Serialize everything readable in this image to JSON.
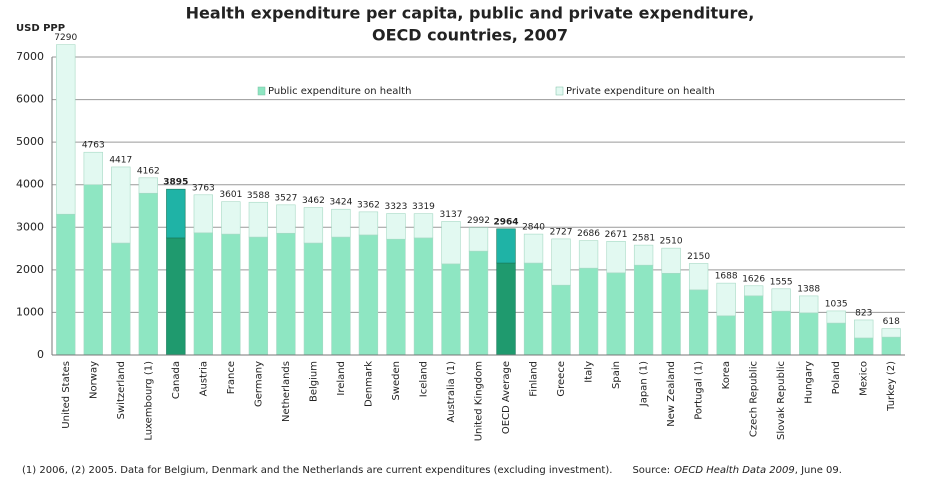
{
  "chart_data": {
    "type": "stacked_bar",
    "title": [
      "Health expenditure per capita, public and private expenditure,",
      "OECD countries, 2007"
    ],
    "y_label": "USD PPP",
    "categories": [
      "United States",
      "Norway",
      "Switzerland",
      "Luxembourg (1)",
      "Canada",
      "Austria",
      "France",
      "Germany",
      "Netherlands",
      "Belgium",
      "Ireland",
      "Denmark",
      "Sweden",
      "Iceland",
      "Australia (1)",
      "United Kingdom",
      "OECD Average",
      "Finland",
      "Greece",
      "Italy",
      "Spain",
      "Japan (1)",
      "New Zealand",
      "Portugal (1)",
      "Korea",
      "Czech Republic",
      "Slovak Republic",
      "Hungary",
      "Poland",
      "Mexico",
      "Turkey (2)"
    ],
    "series": [
      {
        "name": "Public expenditure on health",
        "color": "#8ee6c2",
        "highlight_color": "#1f9a6e",
        "values": [
          3307,
          4000,
          2630,
          3800,
          2750,
          2870,
          2840,
          2770,
          2860,
          2630,
          2770,
          2820,
          2720,
          2750,
          2140,
          2440,
          2160,
          2160,
          1640,
          2040,
          1930,
          2110,
          1920,
          1530,
          920,
          1390,
          1030,
          990,
          750,
          400,
          420
        ]
      },
      {
        "name": "Private expenditure on health",
        "color": "#e2f9f1",
        "highlight_color": "#1fb3a6",
        "values": [
          3983,
          763,
          1787,
          362,
          1145,
          893,
          761,
          818,
          667,
          832,
          654,
          542,
          603,
          569,
          997,
          552,
          804,
          680,
          1087,
          646,
          741,
          471,
          590,
          620,
          768,
          236,
          525,
          398,
          285,
          423,
          198
        ]
      }
    ],
    "totals": [
      7290,
      4763,
      4417,
      4162,
      3895,
      3763,
      3601,
      3588,
      3527,
      3462,
      3424,
      3362,
      3323,
      3319,
      3137,
      2992,
      2964,
      2840,
      2727,
      2686,
      2671,
      2581,
      2510,
      2150,
      1688,
      1626,
      1555,
      1388,
      1035,
      823,
      618
    ],
    "highlight": [
      "Canada",
      "OECD Average"
    ],
    "ylim": [
      0,
      7000
    ],
    "yticks": [
      0,
      1000,
      2000,
      3000,
      4000,
      5000,
      6000,
      7000
    ],
    "grid": true,
    "footnote": {
      "note": "(1) 2006, (2) 2005. Data for Belgium, Denmark and the Netherlands are current expenditures (excluding investment).",
      "source_label": "Source:",
      "source_title": "OECD Health Data 2009",
      "source_date": ", June 09."
    }
  }
}
